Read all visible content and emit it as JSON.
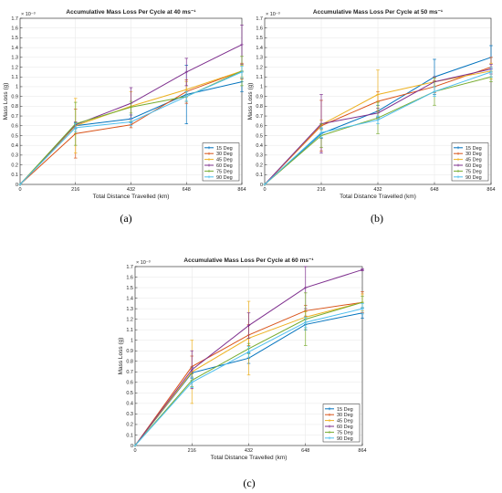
{
  "figure": {
    "panels": [
      {
        "letter": "(a)"
      },
      {
        "letter": "(b)"
      },
      {
        "letter": "(c)"
      }
    ]
  },
  "chart_data": [
    {
      "type": "line",
      "title": "Accumulative Mass Loss Per Cycle at 40 ms⁻¹",
      "xlabel": "Total Distance Travelled (km)",
      "ylabel": "Mass Loss (g)",
      "y_exponent": "× 10⁻³",
      "x": [
        0,
        216,
        432,
        648,
        864
      ],
      "xticks": [
        "0",
        "216",
        "432",
        "648",
        "864"
      ],
      "xlim": [
        0,
        864
      ],
      "ylim": [
        0,
        1.7
      ],
      "yticks": [
        "0",
        "0.1",
        "0.2",
        "0.3",
        "0.4",
        "0.5",
        "0.6",
        "0.7",
        "0.8",
        "0.9",
        "1",
        "1.1",
        "1.2",
        "1.3",
        "1.4",
        "1.5",
        "1.6",
        "1.7"
      ],
      "grid": true,
      "legend_position": "bottom-right",
      "series": [
        {
          "name": "15 Deg",
          "color": "#0072bd",
          "values": [
            0,
            0.6,
            0.67,
            0.92,
            1.05
          ],
          "errors": [
            0,
            0.03,
            0.04,
            0.3,
            0.1
          ]
        },
        {
          "name": "30 Deg",
          "color": "#d95319",
          "values": [
            0,
            0.52,
            0.61,
            0.95,
            1.16
          ],
          "errors": [
            0,
            0.25,
            0.03,
            0.12,
            0.08
          ]
        },
        {
          "name": "45 Deg",
          "color": "#edb120",
          "values": [
            0,
            0.6,
            0.8,
            0.97,
            1.16
          ],
          "errors": [
            0,
            0.28,
            0.15,
            0.08,
            0.06
          ]
        },
        {
          "name": "60 Deg",
          "color": "#7e2f8e",
          "values": [
            0,
            0.61,
            0.83,
            1.15,
            1.43
          ],
          "errors": [
            0,
            0.03,
            0.16,
            0.14,
            0.2
          ]
        },
        {
          "name": "75 Deg",
          "color": "#77ac30",
          "values": [
            0,
            0.62,
            0.79,
            0.9,
            1.16
          ],
          "errors": [
            0,
            0.22,
            0.06,
            0.05,
            0.15
          ]
        },
        {
          "name": "90 Deg",
          "color": "#4dbeee",
          "values": [
            0,
            0.58,
            0.64,
            0.9,
            1.15
          ],
          "errors": [
            0,
            0.04,
            0.04,
            0.05,
            0.06
          ]
        }
      ]
    },
    {
      "type": "line",
      "title": "Accumulative Mass Loss Per Cycle at 50 ms⁻¹",
      "xlabel": "Total Distance Travelled (km)",
      "ylabel": "Mass Loss (g)",
      "y_exponent": "× 10⁻³",
      "x": [
        0,
        216,
        432,
        648,
        864
      ],
      "xticks": [
        "0",
        "216",
        "432",
        "648",
        "864"
      ],
      "xlim": [
        0,
        864
      ],
      "ylim": [
        0,
        1.7
      ],
      "yticks": [
        "0",
        "0.1",
        "0.2",
        "0.3",
        "0.4",
        "0.5",
        "0.6",
        "0.7",
        "0.8",
        "0.9",
        "1",
        "1.1",
        "1.2",
        "1.3",
        "1.4",
        "1.5",
        "1.6",
        "1.7"
      ],
      "grid": true,
      "legend_position": "bottom-right",
      "series": [
        {
          "name": "15 Deg",
          "color": "#0072bd",
          "values": [
            0,
            0.52,
            0.75,
            1.1,
            1.3
          ],
          "errors": [
            0,
            0.05,
            0.06,
            0.18,
            0.12
          ]
        },
        {
          "name": "30 Deg",
          "color": "#d95319",
          "values": [
            0,
            0.6,
            0.85,
            1.0,
            1.2
          ],
          "errors": [
            0,
            0.26,
            0.1,
            0.06,
            0.1
          ]
        },
        {
          "name": "45 Deg",
          "color": "#edb120",
          "values": [
            0,
            0.61,
            0.92,
            1.05,
            1.16
          ],
          "errors": [
            0,
            0.05,
            0.25,
            0.05,
            0.08
          ]
        },
        {
          "name": "60 Deg",
          "color": "#7e2f8e",
          "values": [
            0,
            0.62,
            0.73,
            1.05,
            1.18
          ],
          "errors": [
            0,
            0.3,
            0.05,
            0.05,
            0.05
          ]
        },
        {
          "name": "75 Deg",
          "color": "#77ac30",
          "values": [
            0,
            0.5,
            0.68,
            0.95,
            1.1
          ],
          "errors": [
            0,
            0.12,
            0.16,
            0.14,
            0.05
          ]
        },
        {
          "name": "90 Deg",
          "color": "#4dbeee",
          "values": [
            0,
            0.53,
            0.66,
            0.95,
            1.15
          ],
          "errors": [
            0,
            0.05,
            0.04,
            0.05,
            0.05
          ]
        }
      ]
    },
    {
      "type": "line",
      "title": "Accumulative Mass Loss Per Cycle at 60 ms⁻¹",
      "xlabel": "Total Distance Travelled (km)",
      "ylabel": "Mass Loss (g)",
      "y_exponent": "× 10⁻³",
      "x": [
        0,
        216,
        432,
        648,
        864
      ],
      "xticks": [
        "0",
        "216",
        "432",
        "648",
        "864"
      ],
      "xlim": [
        0,
        864
      ],
      "ylim": [
        0,
        1.7
      ],
      "yticks": [
        "0",
        "0.1",
        "0.2",
        "0.3",
        "0.4",
        "0.5",
        "0.6",
        "0.7",
        "0.8",
        "0.9",
        "1",
        "1.1",
        "1.2",
        "1.3",
        "1.4",
        "1.5",
        "1.6",
        "1.7"
      ],
      "grid": true,
      "legend_position": "bottom-right",
      "series": [
        {
          "name": "15 Deg",
          "color": "#0072bd",
          "values": [
            0,
            0.69,
            0.83,
            1.15,
            1.26
          ],
          "errors": [
            0,
            0.05,
            0.05,
            0.05,
            0.05
          ]
        },
        {
          "name": "30 Deg",
          "color": "#d95319",
          "values": [
            0,
            0.75,
            1.05,
            1.28,
            1.36
          ],
          "errors": [
            0,
            0.1,
            0.1,
            0.05,
            0.1
          ]
        },
        {
          "name": "45 Deg",
          "color": "#edb120",
          "values": [
            0,
            0.7,
            1.02,
            1.22,
            1.36
          ],
          "errors": [
            0,
            0.3,
            0.35,
            0.05,
            0.08
          ]
        },
        {
          "name": "60 Deg",
          "color": "#7e2f8e",
          "values": [
            0,
            0.72,
            1.14,
            1.5,
            1.67
          ],
          "errors": [
            0,
            0.18,
            0.12,
            0.2,
            0.01
          ]
        },
        {
          "name": "75 Deg",
          "color": "#77ac30",
          "values": [
            0,
            0.62,
            0.92,
            1.2,
            1.36
          ],
          "errors": [
            0,
            0.06,
            0.05,
            0.25,
            0.06
          ]
        },
        {
          "name": "90 Deg",
          "color": "#4dbeee",
          "values": [
            0,
            0.6,
            0.89,
            1.17,
            1.3
          ],
          "errors": [
            0,
            0.05,
            0.05,
            0.05,
            0.05
          ]
        }
      ]
    }
  ]
}
